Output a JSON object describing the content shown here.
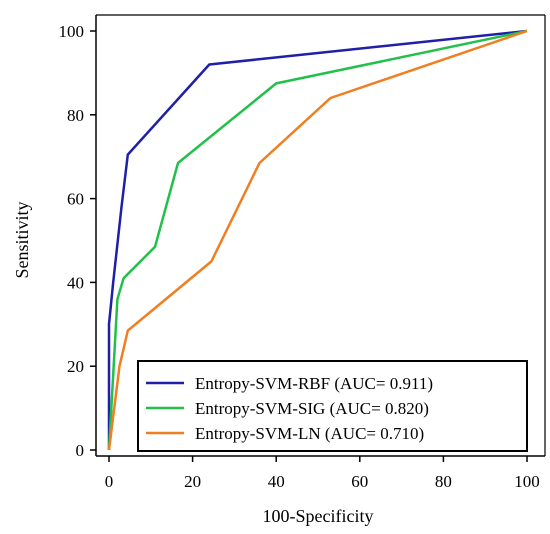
{
  "chart_data": {
    "type": "line",
    "xlabel": "100-Specificity",
    "ylabel": "Sensitivity",
    "xlim": [
      0,
      100
    ],
    "ylim": [
      0,
      100
    ],
    "xticks": [
      "0",
      "20",
      "40",
      "60",
      "80",
      "100"
    ],
    "yticks": [
      "0",
      "20",
      "40",
      "60",
      "80",
      "100"
    ],
    "legend_position": "bottom-right",
    "grid": false,
    "series": [
      {
        "name": "Entropy-SVM-RBF (AUC= 0.911)",
        "color": "#1f1fa8",
        "points": [
          [
            0,
            0
          ],
          [
            0,
            30
          ],
          [
            1,
            40
          ],
          [
            3,
            58
          ],
          [
            4.5,
            70.5
          ],
          [
            24,
            92
          ],
          [
            100,
            100
          ]
        ]
      },
      {
        "name": "Entropy-SVM-SIG (AUC= 0.820)",
        "color": "#22c04a",
        "points": [
          [
            0,
            0
          ],
          [
            2,
            36
          ],
          [
            3.5,
            41
          ],
          [
            11,
            48.5
          ],
          [
            16.5,
            68.5
          ],
          [
            40,
            87.5
          ],
          [
            100,
            100
          ]
        ]
      },
      {
        "name": "Entropy-SVM-LN (AUC= 0.710)",
        "color": "#f07f21",
        "points": [
          [
            0,
            0
          ],
          [
            2.5,
            20
          ],
          [
            4.5,
            28.5
          ],
          [
            24.5,
            45
          ],
          [
            36,
            68.5
          ],
          [
            53,
            84
          ],
          [
            100,
            100
          ]
        ]
      }
    ]
  }
}
